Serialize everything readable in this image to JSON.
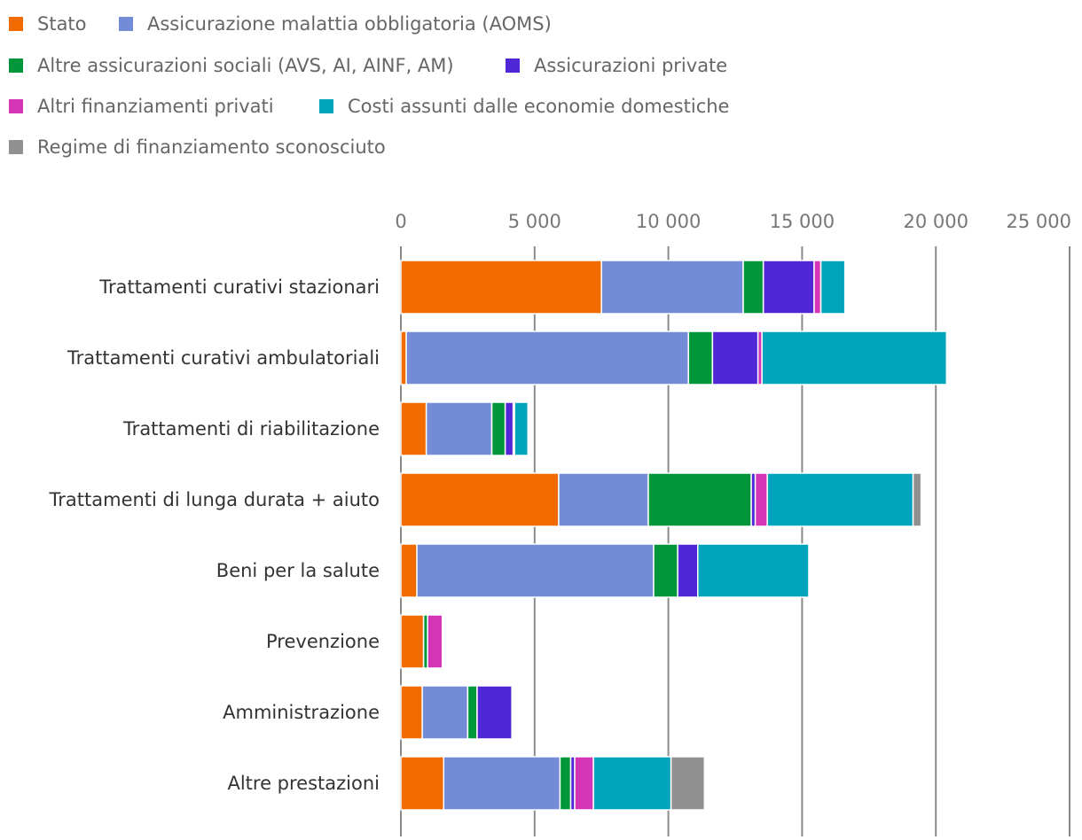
{
  "chart_data": {
    "type": "bar",
    "orientation": "horizontal",
    "stacked": true,
    "title": "",
    "xlabel": "",
    "ylabel": "",
    "xlim": [
      0,
      25000
    ],
    "ticks": [
      0,
      5000,
      10000,
      15000,
      20000,
      25000
    ],
    "tick_labels": [
      "0",
      "5 000",
      "10 000",
      "15 000",
      "20 000",
      "25 000"
    ],
    "grid": true,
    "legend_position": "top",
    "categories": [
      "Trattamenti curativi stazionari",
      "Trattamenti curativi ambulatoriali",
      "Trattamenti di riabilitazione",
      "Trattamenti di lunga durata + aiuto",
      "Beni per la salute",
      "Prevenzione",
      "Amministrazione",
      "Altre prestazioni"
    ],
    "series": [
      {
        "name": "Stato",
        "color": "#F26B00",
        "values": [
          7500,
          200,
          950,
          5900,
          600,
          850,
          800,
          1600
        ]
      },
      {
        "name": "Assicurazione malattia obbligatoria (AOMS)",
        "color": "#748CD8",
        "values": [
          5300,
          10550,
          2450,
          3350,
          8850,
          0,
          1700,
          4350
        ]
      },
      {
        "name": "Altre assicurazioni sociali (AVS, AI, AINF, AM)",
        "color": "#00963A",
        "values": [
          750,
          900,
          500,
          3850,
          900,
          150,
          350,
          400
        ]
      },
      {
        "name": "Assicurazioni private",
        "color": "#5027D6",
        "values": [
          1900,
          1700,
          300,
          150,
          750,
          0,
          1300,
          150
        ]
      },
      {
        "name": "Altri finanziamenti privati",
        "color": "#D435B7",
        "values": [
          250,
          150,
          50,
          450,
          0,
          550,
          0,
          700
        ]
      },
      {
        "name": "Costi assunti dalle economie domestiche",
        "color": "#00A3BC",
        "values": [
          900,
          6900,
          500,
          5450,
          4150,
          0,
          0,
          2900
        ]
      },
      {
        "name": "Regime di finanziamento sconosciuto",
        "color": "#909090",
        "values": [
          0,
          0,
          0,
          300,
          0,
          0,
          0,
          1250
        ]
      }
    ]
  },
  "colors": {
    "grid": "#8A8A8A",
    "tick_text": "#777777",
    "category_text": "#333333",
    "legend_text": "#666666"
  }
}
